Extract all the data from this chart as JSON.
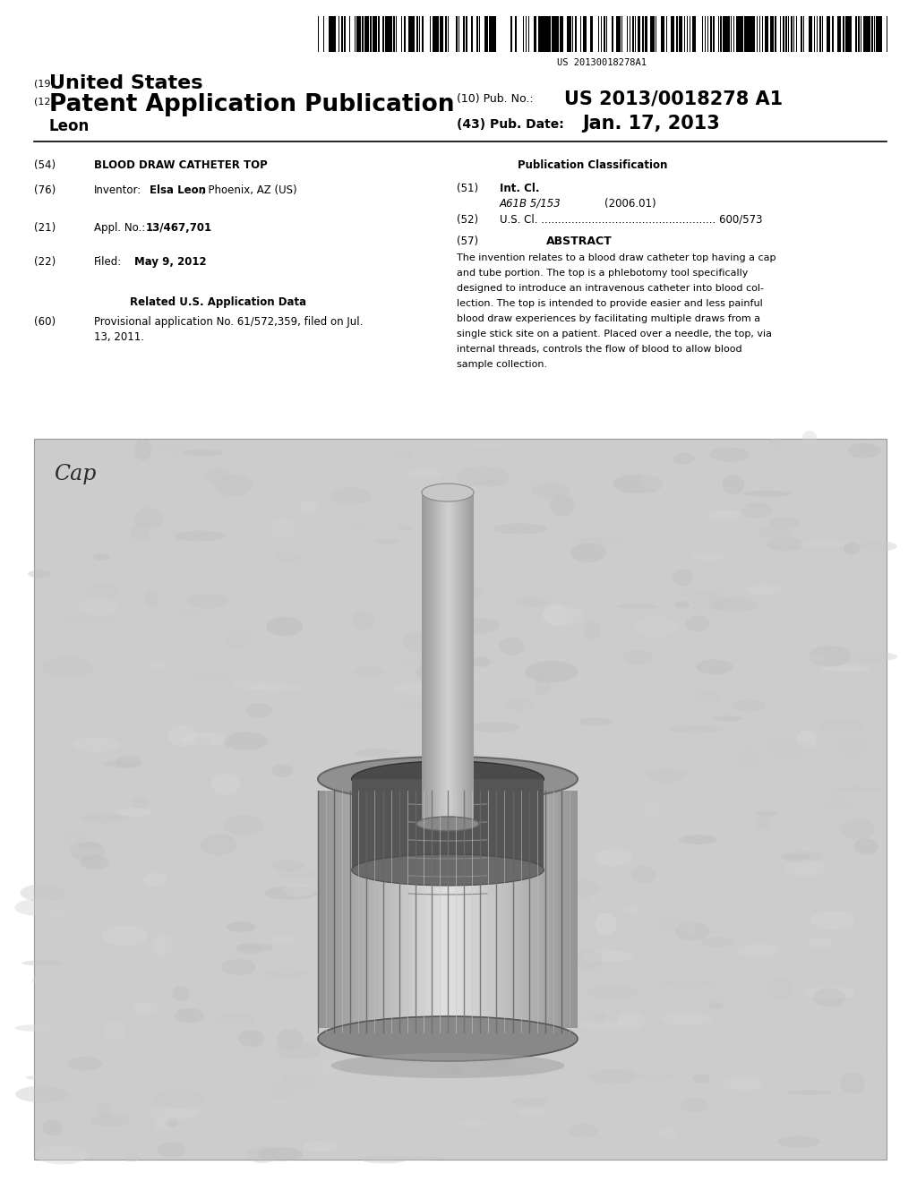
{
  "background_color": "#ffffff",
  "barcode_text": "US 20130018278A1",
  "title19_small": "(19)",
  "title19_big": "United States",
  "title12_small": "(12)",
  "title12_big": "Patent Application Publication",
  "pub_no_label": "(10) Pub. No.:",
  "pub_no_value": "US 2013/0018278 A1",
  "inventor_label": "Leon",
  "pub_date_label": "(43) Pub. Date:",
  "pub_date_value": "Jan. 17, 2013",
  "section54_label": "(54)",
  "section54_title": "BLOOD DRAW CATHETER TOP",
  "pub_class_label": "Publication Classification",
  "section76_label": "(76)",
  "inventor_line_pre": "Inventor:",
  "inventor_line_bold": "Elsa Leon",
  "inventor_line_post": ", Phoenix, AZ (US)",
  "section51_label": "(51)",
  "intcl_label": "Int. Cl.",
  "intcl_class": "A61B 5/153",
  "intcl_year": "(2006.01)",
  "section52_label": "(52)",
  "section21_label": "(21)",
  "appl_label": "Appl. No.:",
  "appl_value": "13/467,701",
  "section57_label": "(57)",
  "abstract_label": "ABSTRACT",
  "section22_label": "(22)",
  "filed_label": "Filed:",
  "filed_date": "May 9, 2012",
  "related_label": "Related U.S. Application Data",
  "section60_label": "(60)",
  "cap_label": "Cap",
  "image_bg_light": "#d4d4d4",
  "image_bg_dark": "#b8b8b8",
  "abstract_lines": [
    "The invention relates to a blood draw catheter top having a cap",
    "and tube portion. The top is a phlebotomy tool specifically",
    "designed to introduce an intravenous catheter into blood col-",
    "lection. The top is intended to provide easier and less painful",
    "blood draw experiences by facilitating multiple draws from a",
    "single stick site on a patient. Placed over a needle, the top, via",
    "internal threads, controls the flow of blood to allow blood",
    "sample collection."
  ]
}
